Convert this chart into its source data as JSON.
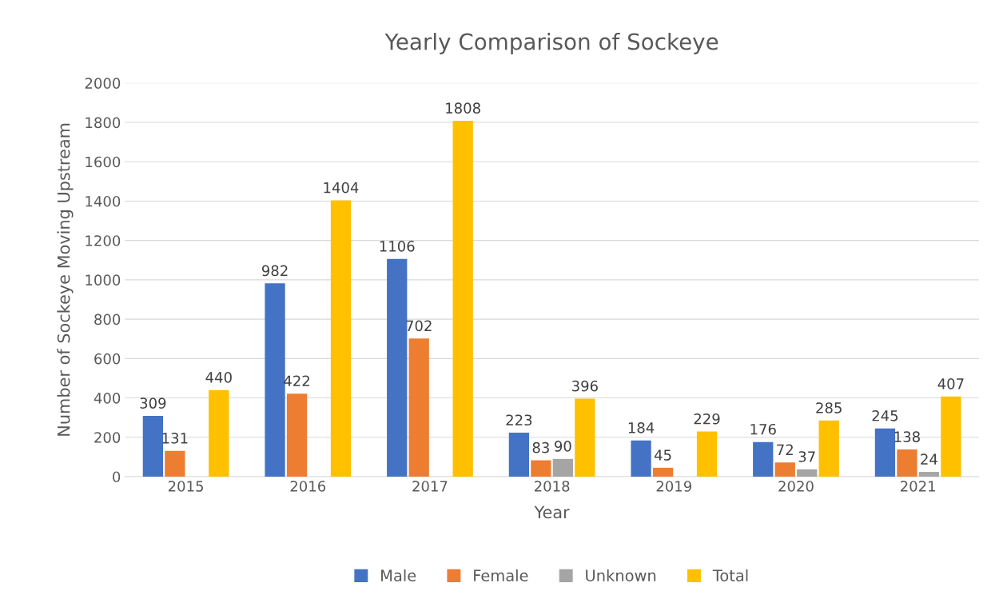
{
  "chart_data": {
    "type": "bar",
    "title": "Yearly Comparison of Sockeye",
    "xlabel": "Year",
    "ylabel": "Number of Sockeye Moving Upstream",
    "categories": [
      "2015",
      "2016",
      "2017",
      "2018",
      "2019",
      "2020",
      "2021"
    ],
    "series": [
      {
        "name": "Male",
        "color": "#4472c4",
        "values": [
          309,
          982,
          1106,
          223,
          184,
          176,
          245
        ]
      },
      {
        "name": "Female",
        "color": "#ed7d31",
        "values": [
          131,
          422,
          702,
          83,
          45,
          72,
          138
        ]
      },
      {
        "name": "Unknown",
        "color": "#a5a5a5",
        "values": [
          null,
          null,
          null,
          90,
          null,
          37,
          24
        ]
      },
      {
        "name": "Total",
        "color": "#ffc000",
        "values": [
          440,
          1404,
          1808,
          396,
          229,
          285,
          407
        ]
      }
    ],
    "ylim": [
      0,
      2000
    ],
    "yticks": [
      0,
      200,
      400,
      600,
      800,
      1000,
      1200,
      1400,
      1600,
      1800,
      2000
    ],
    "grid": "y",
    "legend": "bottom",
    "data_labels": true
  }
}
